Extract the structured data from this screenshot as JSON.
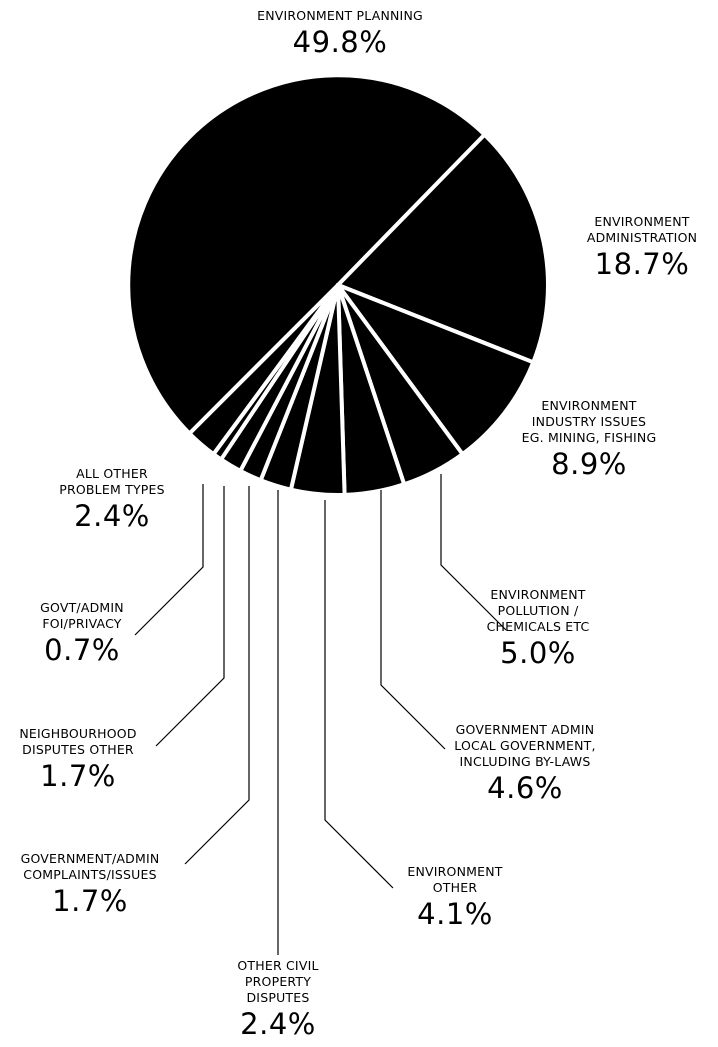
{
  "chart_data": {
    "type": "pie",
    "colors": {
      "slice": "#000000",
      "separator": "#ffffff",
      "leader": "#000000"
    },
    "slices": [
      {
        "lines": [
          "ENVIRONMENT PLANNING"
        ],
        "value_label": "49.8%",
        "value": 49.8
      },
      {
        "lines": [
          "ENVIRONMENT",
          "ADMINISTRATION"
        ],
        "value_label": "18.7%",
        "value": 18.7
      },
      {
        "lines": [
          "ENVIRONMENT",
          "INDUSTRY ISSUES",
          "EG. MINING, FISHING"
        ],
        "value_label": "8.9%",
        "value": 8.9
      },
      {
        "lines": [
          "ENVIRONMENT",
          "POLLUTION /",
          "CHEMICALS ETC"
        ],
        "value_label": "5.0%",
        "value": 5.0
      },
      {
        "lines": [
          "GOVERNMENT ADMIN",
          "LOCAL GOVERNMENT,",
          "INCLUDING BY-LAWS"
        ],
        "value_label": "4.6%",
        "value": 4.6
      },
      {
        "lines": [
          "ENVIRONMENT",
          "OTHER"
        ],
        "value_label": "4.1%",
        "value": 4.1
      },
      {
        "lines": [
          "OTHER CIVIL",
          "PROPERTY",
          "DISPUTES"
        ],
        "value_label": "2.4%",
        "value": 2.4
      },
      {
        "lines": [
          "GOVERNMENT/ADMIN",
          "COMPLAINTS/ISSUES"
        ],
        "value_label": "1.7%",
        "value": 1.7
      },
      {
        "lines": [
          "NEIGHBOURHOOD",
          "DISPUTES OTHER"
        ],
        "value_label": "1.7%",
        "value": 1.7
      },
      {
        "lines": [
          "GOVT/ADMIN",
          "FOI/PRIVACY"
        ],
        "value_label": "0.7%",
        "value": 0.7
      },
      {
        "lines": [
          "ALL OTHER",
          "PROBLEM TYPES"
        ],
        "value_label": "2.4%",
        "value": 2.4
      }
    ]
  }
}
